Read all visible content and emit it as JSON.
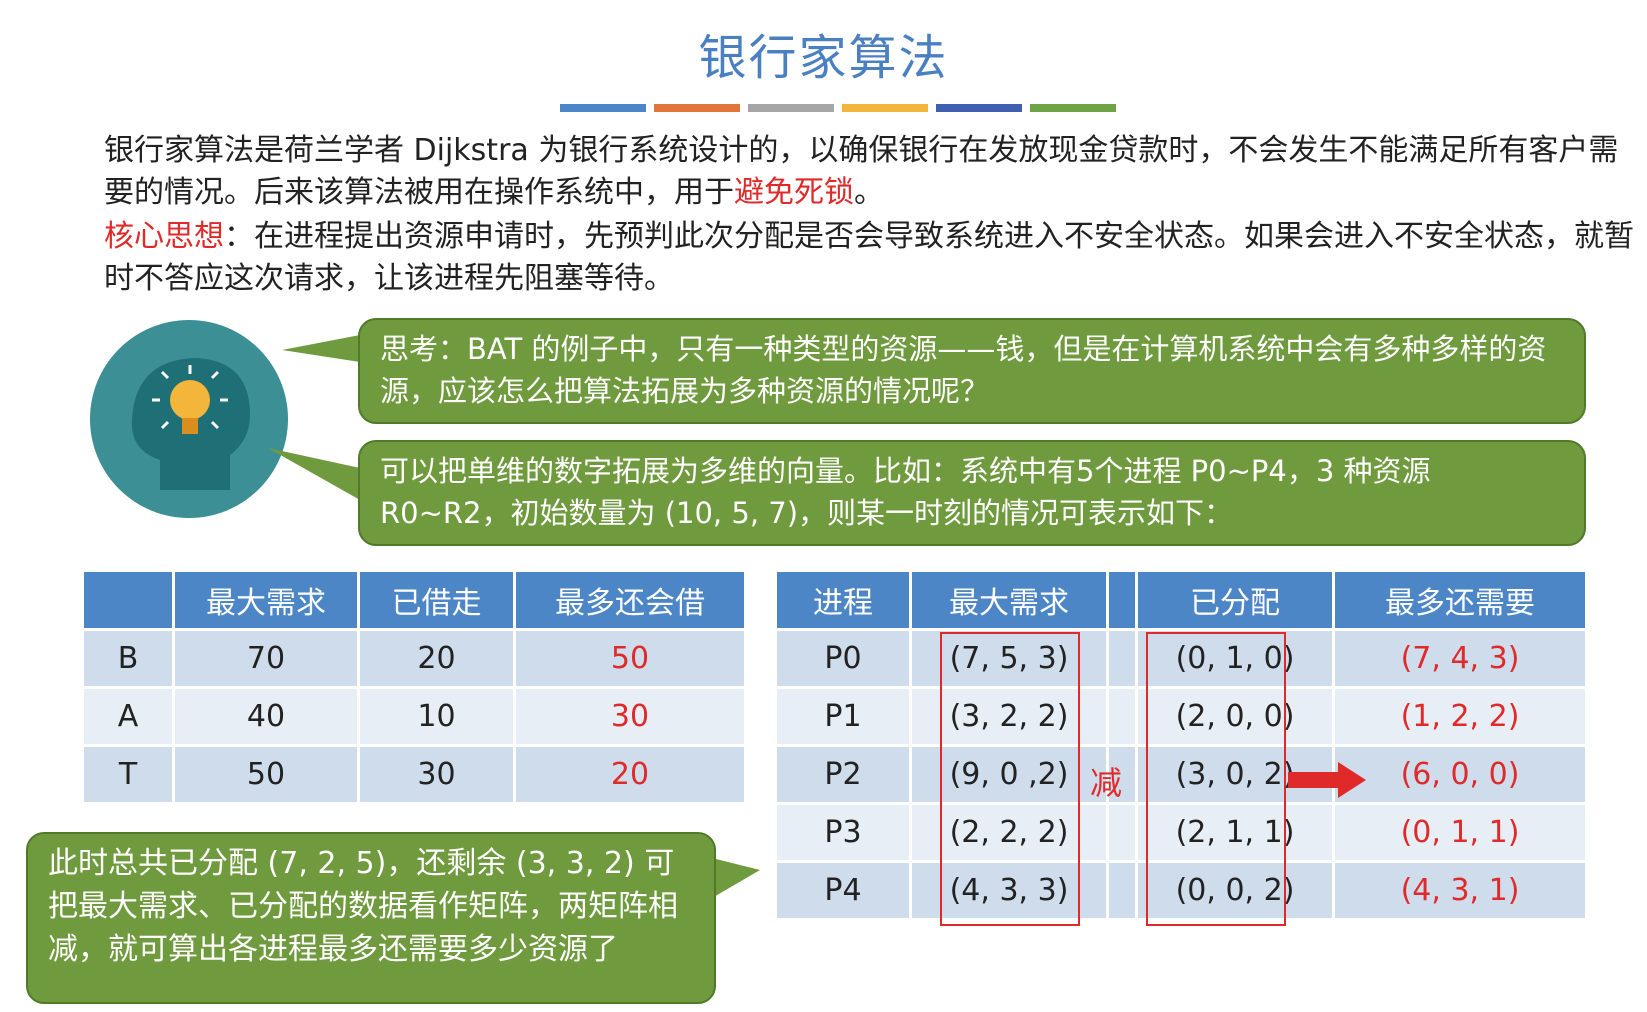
{
  "title": "银行家算法",
  "divider_colors": [
    "#4a86c8",
    "#e0763a",
    "#a6a6a6",
    "#f2b63c",
    "#3f5fb0",
    "#6ea346"
  ],
  "para1": {
    "text_before": "银行家算法是荷兰学者 Dijkstra 为银行系统设计的，以确保银行在发放现金贷款时，不会发生不能满足所有客户需要的情况。后来该算法被用在操作系统中，用于",
    "highlight": "避免死锁",
    "text_after": "。"
  },
  "para2": {
    "highlight": "核心思想",
    "text": "：在进程提出资源申请时，先预判此次分配是否会导致系统进入不安全状态。如果会进入不安全状态，就暂时不答应这次请求，让该进程先阻塞等待。"
  },
  "bubble1": "思考：BAT 的例子中，只有一种类型的资源——钱，但是在计算机系统中会有多种多样的资源，应该怎么把算法拓展为多种资源的情况呢？",
  "bubble2": "可以把单维的数字拓展为多维的向量。比如：系统中有5个进程 P0~P4，3 种资源 R0~R2，初始数量为 (10, 5, 7)，则某一时刻的情况可表示如下：",
  "bubble3": "此时总共已分配 (7, 2, 5)，还剩余 (3, 3, 2) 可把最大需求、已分配的数据看作矩阵，两矩阵相减，就可算出各进程最多还需要多少资源了",
  "left_table": {
    "headers": [
      "",
      "最大需求",
      "已借走",
      "最多还会借"
    ],
    "rows": [
      [
        "B",
        "70",
        "20",
        "50"
      ],
      [
        "A",
        "40",
        "10",
        "30"
      ],
      [
        "T",
        "50",
        "30",
        "20"
      ]
    ]
  },
  "right_table": {
    "headers": [
      "进程",
      "最大需求",
      "",
      "已分配",
      "最多还需要"
    ],
    "rows": [
      [
        "P0",
        "(7, 5, 3)",
        "",
        "(0, 1, 0)",
        "(7, 4, 3)"
      ],
      [
        "P1",
        "(3, 2, 2)",
        "",
        "(2, 0, 0)",
        "(1, 2, 2)"
      ],
      [
        "P2",
        "(9, 0 ,2)",
        "",
        "(3, 0, 2)",
        "(6, 0, 0)"
      ],
      [
        "P3",
        "(2, 2, 2)",
        "",
        "(2, 1, 1)",
        "(0, 1, 1)"
      ],
      [
        "P4",
        "(4, 3, 3)",
        "",
        "(0, 0, 2)",
        "(4, 3, 1)"
      ]
    ]
  },
  "minus_label": "减",
  "icons": [
    "head-lightbulb-icon",
    "right-arrow-icon"
  ]
}
